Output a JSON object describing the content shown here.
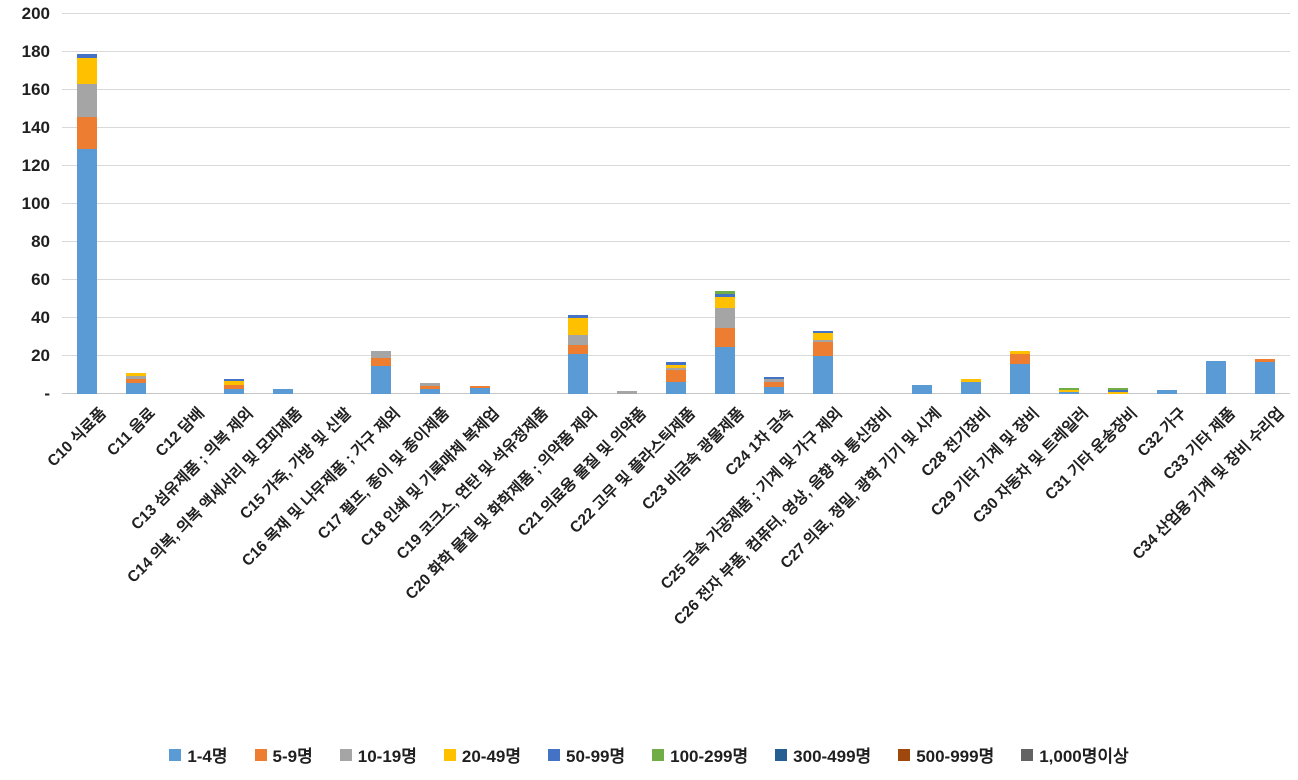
{
  "chart_data": {
    "type": "bar",
    "stacked": true,
    "title": "",
    "xlabel": "",
    "ylabel": "",
    "grid": true,
    "legend_position": "bottom",
    "y_axis": {
      "min": 0,
      "max": 200,
      "step": 20,
      "zero_label": "-",
      "tick_labels": [
        "-",
        "20",
        "40",
        "60",
        "80",
        "100",
        "120",
        "140",
        "160",
        "180",
        "200"
      ]
    },
    "categories": [
      "C10 식료품",
      "C11 음료",
      "C12 담배",
      "C13 섬유제품 ; 의복 제외",
      "C14 의복, 의복 액세서리 및 모피제품",
      "C15 가죽, 가방 및 신발",
      "C16 목재 및 나무제품 ; 가구 제외",
      "C17 펄프, 종이 및 종이제품",
      "C18 인쇄 및 기록매체 복제업",
      "C19 코크스, 연탄 및 석유정제품",
      "C20 화학 물질 및 화학제품 ; 의약품 제외",
      "C21 의료용 물질 및 의약품",
      "C22 고무 및 플라스틱제품",
      "C23 비금속 광물제품",
      "C24 1차 금속",
      "C25 금속 가공제품 ; 기계 및 가구 제외",
      "C26 전자 부품, 컴퓨터, 영상, 음향 및 통신장비",
      "C27 의료, 정밀, 광학 기기 및 시계",
      "C28 전기장비",
      "C29 기타 기계 및 장비",
      "C30 자동차 및 트레일러",
      "C31 기타 운송장비",
      "C32 가구",
      "C33 기타 제품",
      "C34 산업용 기계 및 장비 수리업"
    ],
    "series": [
      {
        "name": "1-4명",
        "color": "#5B9BD5",
        "values": [
          129,
          6,
          0,
          2.5,
          2.5,
          0,
          14.5,
          2.5,
          3,
          0,
          21,
          0,
          6.5,
          25,
          3.5,
          20,
          0,
          5,
          6.5,
          16,
          1.3,
          0,
          2.3,
          17.4,
          17
        ]
      },
      {
        "name": "5-9명",
        "color": "#ED7D31",
        "values": [
          17,
          2,
          0,
          2.5,
          0,
          0,
          4.5,
          1.5,
          1,
          0,
          5,
          0,
          6,
          9.5,
          3,
          7.5,
          0,
          0,
          0,
          5,
          0,
          0,
          0,
          0,
          1.3
        ]
      },
      {
        "name": "10-19명",
        "color": "#A5A5A5",
        "values": [
          17,
          1.5,
          0,
          0,
          0,
          0,
          3.5,
          2,
          0,
          0,
          5,
          1.5,
          1,
          11,
          1.5,
          1,
          0,
          0,
          0,
          0,
          0,
          0,
          0,
          0,
          0
        ]
      },
      {
        "name": "20-49명",
        "color": "#FFC000",
        "values": [
          14,
          1.5,
          0,
          2,
          0,
          0,
          0,
          0,
          0,
          0,
          9,
          0,
          2,
          5.5,
          0,
          3.5,
          0,
          0,
          1.2,
          1.5,
          1,
          1,
          0,
          0,
          0
        ]
      },
      {
        "name": "50-99명",
        "color": "#4472C4",
        "values": [
          2,
          0,
          0,
          1,
          0,
          0,
          0,
          0,
          0,
          0,
          1.5,
          0,
          1.5,
          1.5,
          1,
          1,
          0,
          0,
          0,
          0,
          0,
          1.2,
          0,
          0,
          0
        ]
      },
      {
        "name": "100-299명",
        "color": "#70AD47",
        "values": [
          0,
          0,
          0,
          0,
          0,
          0,
          0,
          0,
          0,
          0,
          0,
          0,
          0,
          1.5,
          0,
          0,
          0,
          0,
          0,
          0,
          1,
          1,
          0,
          0,
          0
        ]
      },
      {
        "name": "300-499명",
        "color": "#255E91",
        "values": [
          0,
          0,
          0,
          0,
          0,
          0,
          0,
          0,
          0,
          0,
          0,
          0,
          0,
          0,
          0,
          0,
          0,
          0,
          0,
          0,
          0,
          0,
          0,
          0,
          0
        ]
      },
      {
        "name": "500-999명",
        "color": "#9E480E",
        "values": [
          0,
          0,
          0,
          0,
          0,
          0,
          0,
          0,
          0,
          0,
          0,
          0,
          0,
          0,
          0,
          0,
          0,
          0,
          0,
          0,
          0,
          0,
          0,
          0,
          0
        ]
      },
      {
        "name": "1,000명이상",
        "color": "#636363",
        "values": [
          0,
          0,
          0,
          0,
          0,
          0,
          0,
          0,
          0,
          0,
          0,
          0,
          0,
          0,
          0,
          0,
          0,
          0,
          0,
          0,
          0,
          0,
          0,
          0,
          0
        ]
      }
    ]
  }
}
